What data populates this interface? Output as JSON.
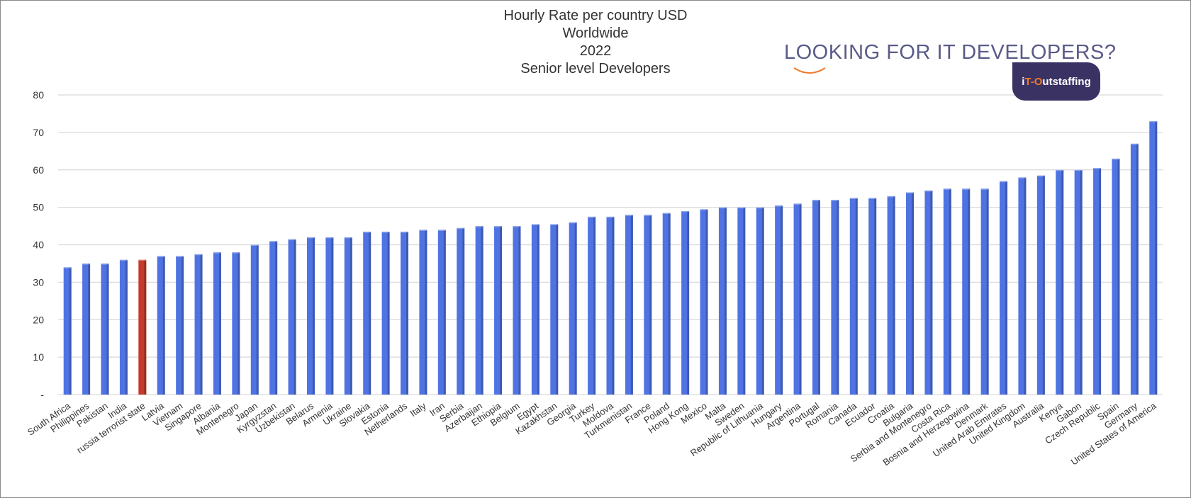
{
  "chart_data": {
    "type": "bar",
    "title": "Hourly Rate per country USD",
    "subtitle": [
      "Worldwide",
      "2022",
      "Senior level Developers"
    ],
    "xlabel": "",
    "ylabel": "",
    "ylim": [
      0,
      80
    ],
    "yticks": [
      {
        "value": 0,
        "label": "-"
      },
      {
        "value": 10,
        "label": "10"
      },
      {
        "value": 20,
        "label": "20"
      },
      {
        "value": 30,
        "label": "30"
      },
      {
        "value": 40,
        "label": "40"
      },
      {
        "value": 50,
        "label": "50"
      },
      {
        "value": 60,
        "label": "60"
      },
      {
        "value": 70,
        "label": "70"
      },
      {
        "value": 80,
        "label": "80"
      }
    ],
    "grid": true,
    "legend": "none",
    "bar_color": "#4f73e3",
    "highlight_color": "#c63a2c",
    "highlight_index": 4,
    "categories": [
      "South Africa",
      "Philippines",
      "Pakistan",
      "India",
      "russia terrorist state",
      "Latvia",
      "Vietnam",
      "Singapore",
      "Albania",
      "Montenegro",
      "Japan",
      "Kyrgyzstan",
      "Uzbekistan",
      "Belarus",
      "Armenia",
      "Ukraine",
      "Slovakia",
      "Estonia",
      "Netherlands",
      "Italy",
      "Iran",
      "Serbia",
      "Azerbaijan",
      "Ethiopia",
      "Belgium",
      "Egypt",
      "Kazakhstan",
      "Georgia",
      "Turkey",
      "Moldova",
      "Turkmenistan",
      "France",
      "Poland",
      "Hong Kong",
      "Mexico",
      "Malta",
      "Sweden",
      "Republic of Lithuania",
      "Hungary",
      "Argentina",
      "Portugal",
      "Romania",
      "Canada",
      "Ecuador",
      "Croatia",
      "Bulgaria",
      "Serbia and Montenegro",
      "Costa Rica",
      "Bosnia and Herzegowina",
      "Denmark",
      "United Arab Emirates",
      "United Kingdom",
      "Australia",
      "Kenya",
      "Gabon",
      "Czech Republic",
      "Spain",
      "Germany",
      "United States of America"
    ],
    "values": [
      34,
      35,
      35,
      36,
      36,
      37,
      37,
      37.5,
      38,
      38,
      40,
      41,
      41.5,
      42,
      42,
      42,
      43.5,
      43.5,
      43.5,
      44,
      44,
      44.5,
      45,
      45,
      45,
      45.5,
      45.5,
      46,
      47.5,
      47.5,
      48,
      48,
      48.5,
      49,
      49.5,
      50,
      50,
      50,
      50.5,
      51,
      52,
      52,
      52.5,
      52.5,
      53,
      54,
      54.5,
      55,
      55,
      55,
      57,
      58,
      58.5,
      60,
      60,
      60.5,
      63,
      67,
      73
    ]
  },
  "promo": {
    "headline": "LOOKING FOR IT DEVELOPERS?",
    "badge_prefix": "iT-O",
    "badge_rest": "utstaffing"
  }
}
